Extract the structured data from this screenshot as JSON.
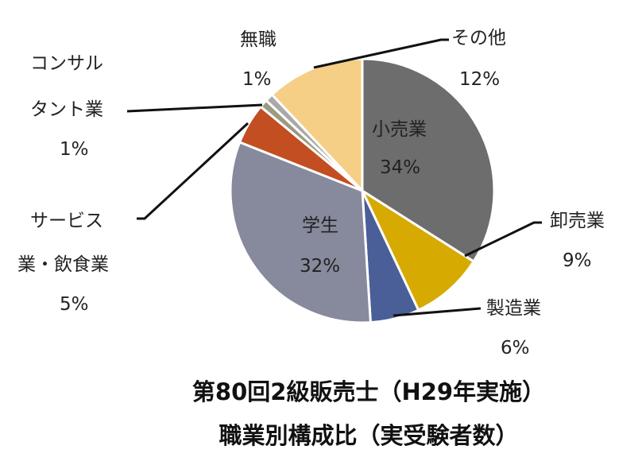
{
  "chart_data": {
    "type": "pie",
    "title": [
      "第80回2級販売士（H29年実施）",
      "職業別構成比（実受験者数）"
    ],
    "start": "12 o'clock, clockwise",
    "slices": [
      {
        "label": "小売業",
        "value": 34,
        "pct": "34%",
        "color": "#6d6d6d"
      },
      {
        "label": "卸売業",
        "value": 9,
        "pct": "9%",
        "color": "#d6aa00"
      },
      {
        "label": "製造業",
        "value": 6,
        "pct": "6%",
        "color": "#4a5e98"
      },
      {
        "label": "学生",
        "value": 32,
        "pct": "32%",
        "color": "#878a9c"
      },
      {
        "label_lines": [
          "サービス",
          "業・飲食業"
        ],
        "value": 5,
        "pct": "5%",
        "color": "#c24e22"
      },
      {
        "label_lines": [
          "コンサル",
          "タント業"
        ],
        "value": 1,
        "pct": "1%",
        "color": "#9b9a82"
      },
      {
        "label": "無職",
        "value": 1,
        "pct": "1%",
        "color": "#a9a9ab"
      },
      {
        "label": "その他",
        "value": 12,
        "pct": "12%",
        "color": "#f5cf85"
      }
    ]
  }
}
